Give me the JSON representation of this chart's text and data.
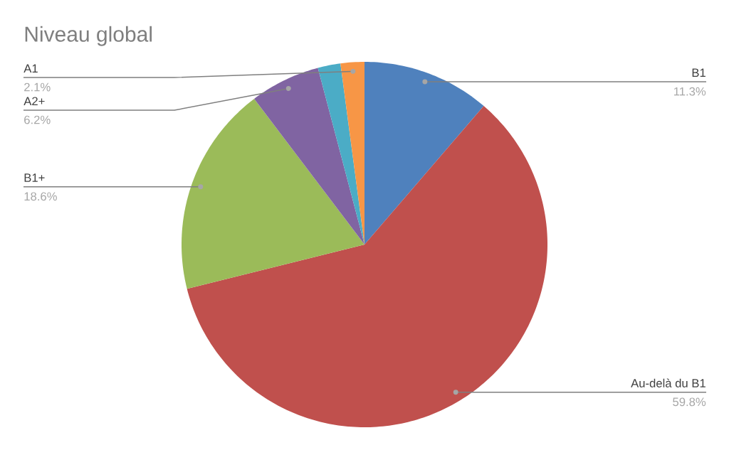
{
  "chart_data": {
    "type": "pie",
    "title": "Niveau global",
    "categories": [
      "B1",
      "Au-delà du B1",
      "B1+",
      "A2+",
      null,
      "A1"
    ],
    "values": [
      11.3,
      59.8,
      18.6,
      6.2,
      2.0,
      2.1
    ],
    "colors": [
      "#4f81bd",
      "#c0504d",
      "#9bbb59",
      "#8064a2",
      "#4bacc6",
      "#f79646"
    ],
    "value_labels": [
      "11.3%",
      "59.8%",
      "18.6%",
      "6.2%",
      null,
      "2.1%"
    ]
  }
}
